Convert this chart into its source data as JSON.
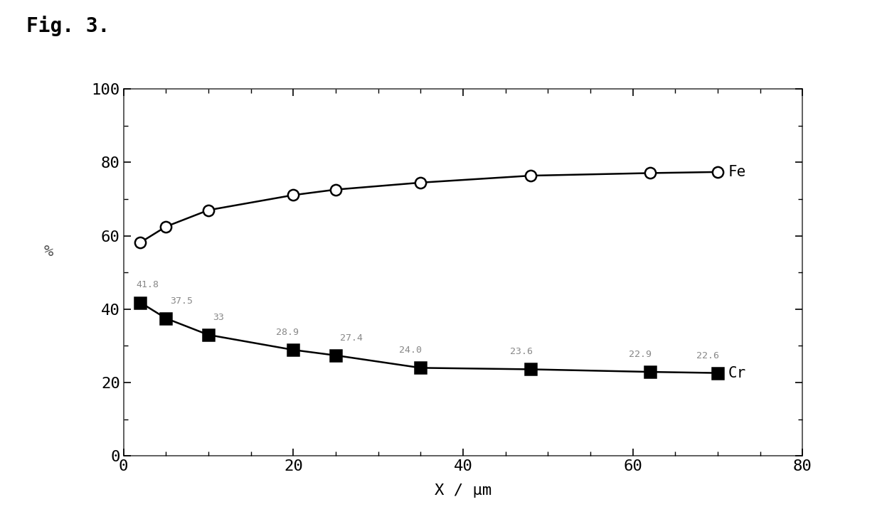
{
  "cr_x": [
    2,
    5,
    10,
    20,
    25,
    35,
    48,
    62,
    70
  ],
  "cr_y": [
    41.8,
    37.5,
    33.0,
    28.9,
    27.4,
    24.0,
    23.6,
    22.9,
    22.6
  ],
  "fe_x": [
    2,
    5,
    10,
    20,
    25,
    35,
    48,
    62,
    70
  ],
  "fe_y": [
    58.2,
    62.5,
    67.0,
    71.1,
    72.6,
    74.5,
    76.4,
    77.1,
    77.4
  ],
  "cr_labels": [
    "41.8",
    "37.5",
    "33",
    "28.9",
    "27.4",
    "24.0",
    "23.6",
    "22.9",
    "22.6"
  ],
  "xlabel": "X / μm",
  "ylabel": "%",
  "fig_label": "Fig. 3.",
  "xlim": [
    0,
    80
  ],
  "ylim": [
    0,
    100
  ],
  "xticks": [
    0,
    20,
    40,
    60,
    80
  ],
  "yticks": [
    0,
    20,
    40,
    60,
    80,
    100
  ],
  "fe_label": "Fe",
  "cr_label": "Cr",
  "bg_color": "#ffffff",
  "line_color": "#000000",
  "annotation_color": "#888888",
  "cr_label_positions": [
    [
      2,
      41.8,
      "41.8",
      -0.5,
      3.5
    ],
    [
      5,
      37.5,
      "37.5",
      0.5,
      3.5
    ],
    [
      10,
      33.0,
      "33",
      0.5,
      3.5
    ],
    [
      20,
      28.9,
      "28.9",
      -2.0,
      3.5
    ],
    [
      25,
      27.4,
      "27.4",
      0.5,
      3.5
    ],
    [
      35,
      24.0,
      "24.0",
      -2.5,
      3.5
    ],
    [
      48,
      23.6,
      "23.6",
      -2.5,
      3.5
    ],
    [
      62,
      22.9,
      "22.9",
      -2.5,
      3.5
    ],
    [
      70,
      22.6,
      "22.6",
      -2.5,
      3.5
    ]
  ]
}
